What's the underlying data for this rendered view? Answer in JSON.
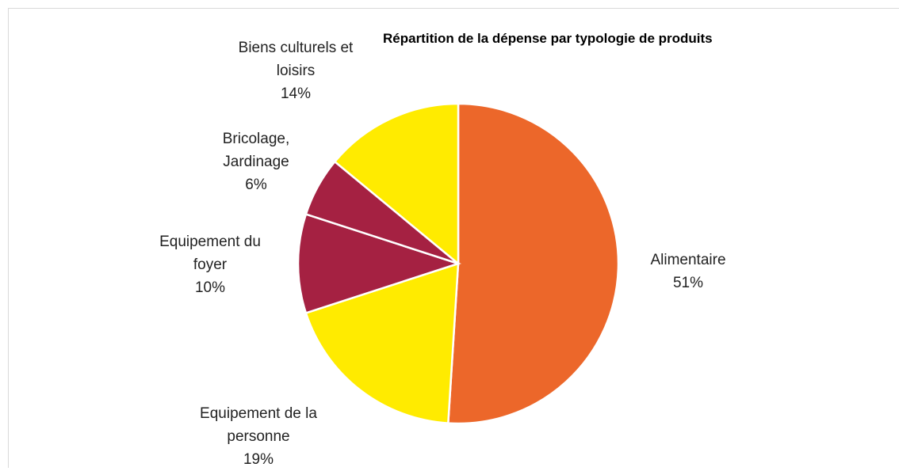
{
  "chart_data": {
    "type": "pie",
    "title": "Répartition de la dépense par typologie de produits",
    "categories": [
      "Alimentaire",
      "Equipement de la personne",
      "Equipement du foyer",
      "Bricolage, Jardinage",
      "Biens culturels et loisirs"
    ],
    "values": [
      51,
      19,
      10,
      6,
      14
    ],
    "value_labels": [
      "51%",
      "19%",
      "10%",
      "6%",
      "14%"
    ],
    "colors": [
      "#EC672A",
      "#FFEB00",
      "#A52142",
      "#A52142",
      "#FFEB00"
    ]
  }
}
